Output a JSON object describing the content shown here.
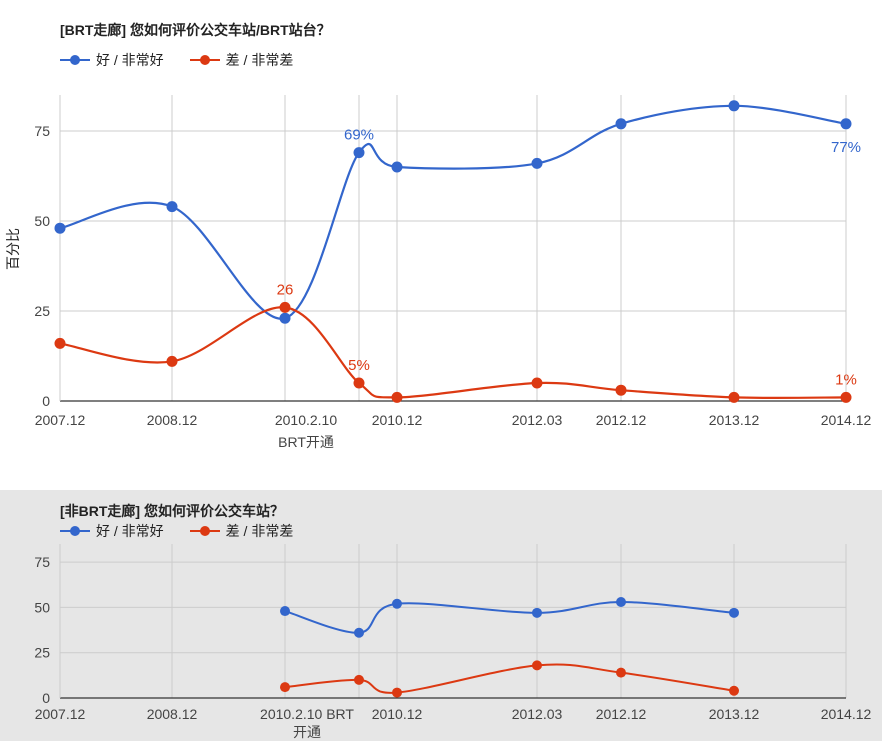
{
  "chart_data": [
    {
      "type": "line",
      "title": "[BRT走廊] 您如何评价公交车站/BRT站台？",
      "ylabel": "百分比",
      "xlabel": "",
      "ylim": [
        0,
        85
      ],
      "yticks": [
        0,
        25,
        50,
        75
      ],
      "grid": true,
      "legend_position": "top-left",
      "categories": [
        "2007.12",
        "2008.12",
        "2010.2.10",
        "",
        "2010.12",
        "2012.03",
        "2012.12",
        "2013.12",
        "2014.12"
      ],
      "annotation": "BRT开通",
      "series": [
        {
          "name": "好 / 非常好",
          "color": "#3366cc",
          "values": [
            48,
            54,
            23,
            69,
            65,
            66,
            77,
            82,
            77
          ]
        },
        {
          "name": "差 / 非常差",
          "color": "#dc3912",
          "values": [
            16,
            11,
            26,
            5,
            1,
            5,
            3,
            1,
            1
          ]
        }
      ],
      "data_labels": [
        {
          "series": 0,
          "index": 3,
          "text": "69%"
        },
        {
          "series": 0,
          "index": 8,
          "text": "77%"
        },
        {
          "series": 1,
          "index": 2,
          "text": "26"
        },
        {
          "series": 1,
          "index": 3,
          "text": "5%"
        },
        {
          "series": 1,
          "index": 8,
          "text": "1%"
        }
      ]
    },
    {
      "type": "line",
      "title": "[非BRT走廊] 您如何评价公交车站？",
      "ylabel": "",
      "xlabel": "",
      "ylim": [
        0,
        85
      ],
      "yticks": [
        0,
        25,
        50,
        75
      ],
      "grid": true,
      "legend_position": "top-left",
      "categories": [
        "2007.12",
        "2008.12",
        "2010.2.10 BRT 开通",
        "",
        "2010.12",
        "2012.03",
        "2012.12",
        "2013.12",
        "2014.12"
      ],
      "series": [
        {
          "name": "好 / 非常好",
          "color": "#3366cc",
          "values": [
            null,
            null,
            48,
            36,
            52,
            47,
            53,
            47,
            null
          ]
        },
        {
          "name": "差 / 非常差",
          "color": "#dc3912",
          "values": [
            null,
            null,
            6,
            10,
            3,
            18,
            14,
            4,
            null
          ]
        }
      ],
      "data_labels": []
    }
  ]
}
